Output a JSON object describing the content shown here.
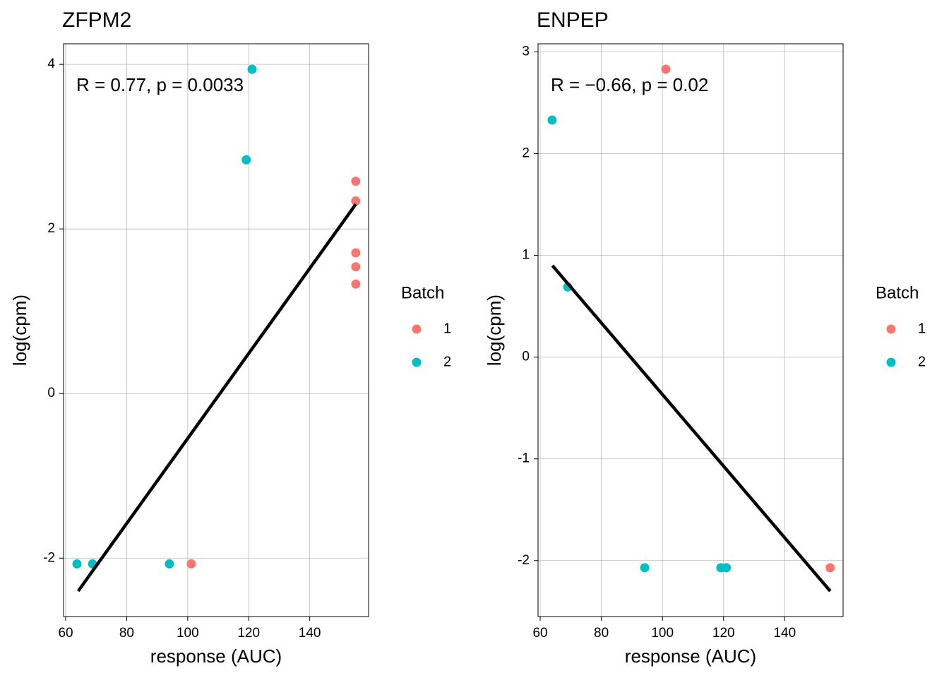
{
  "chart_data": [
    {
      "type": "scatter",
      "title": "ZFPM2",
      "xlabel": "response (AUC)",
      "ylabel": "log(cpm)",
      "annotation": "R = 0.77, p = 0.0033",
      "legend_title": "Batch",
      "series": [
        {
          "name": "1",
          "color": "#F8766D",
          "x": [
            101.2,
            155.1,
            155.1,
            155.1,
            155.1,
            155.1
          ],
          "y": [
            -2.07,
            2.58,
            2.34,
            1.71,
            1.54,
            1.33
          ]
        },
        {
          "name": "2",
          "color": "#00BFC4",
          "x": [
            63.7,
            68.8,
            94.0,
            119.2,
            121.1
          ],
          "y": [
            -2.07,
            -2.07,
            -2.07,
            2.84,
            3.94
          ]
        }
      ],
      "fit": {
        "color": "#000000",
        "x": [
          64.1,
          155.1
        ],
        "y": [
          -2.4,
          2.3
        ]
      },
      "xlim": [
        59.3,
        159.3
      ],
      "ylim": [
        -2.71,
        4.25
      ],
      "xticks": [
        60,
        80,
        100,
        120,
        140
      ],
      "yticks": [
        -2,
        0,
        2,
        4
      ],
      "grid": true
    },
    {
      "type": "scatter",
      "title": "ENPEP",
      "xlabel": "response (AUC)",
      "ylabel": "log(cpm)",
      "annotation": "R = −0.66, p = 0.02",
      "legend_title": "Batch",
      "series": [
        {
          "name": "1",
          "color": "#F8766D",
          "x": [
            101.1,
            154.9
          ],
          "y": [
            2.83,
            -2.07
          ]
        },
        {
          "name": "2",
          "color": "#00BFC4",
          "x": [
            63.9,
            69.0,
            94.2,
            119.1,
            120.9
          ],
          "y": [
            2.33,
            0.69,
            -2.07,
            -2.07,
            -2.07
          ]
        }
      ],
      "fit": {
        "color": "#000000",
        "x": [
          64.0,
          154.9
        ],
        "y": [
          0.9,
          -2.3
        ]
      },
      "xlim": [
        59.3,
        159.1
      ],
      "ylim": [
        -2.55,
        3.08
      ],
      "xticks": [
        60,
        80,
        100,
        120,
        140
      ],
      "yticks": [
        -2,
        -1,
        0,
        1,
        2,
        3
      ],
      "grid": true
    }
  ]
}
